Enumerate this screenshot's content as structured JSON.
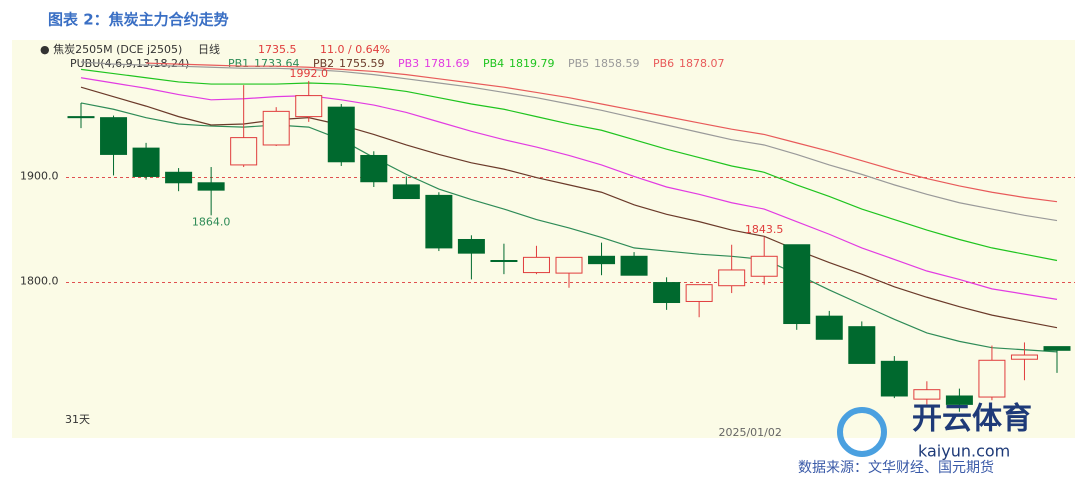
{
  "chart_data": {
    "type": "candlestick",
    "title": "图表 2：焦炭主力合约走势",
    "instrument": "● 焦炭2505M (DCE j2505)",
    "period": "日线",
    "last_price": "1735.5",
    "change": "11.0 / 0.64%",
    "indicator": "PUBU(4,6,9,13,18,24)",
    "period_label": "31天",
    "source": "数据来源：文华财经、国元期货",
    "watermark": [
      "开云体育",
      "kaiyun.com"
    ],
    "categories": [
      null,
      null,
      null,
      null,
      null,
      null,
      null,
      null,
      null,
      null,
      null,
      null,
      null,
      null,
      null,
      null,
      null,
      null,
      null,
      null,
      null,
      "2025/01/02",
      null,
      null,
      null,
      null,
      null,
      null,
      null,
      null,
      null
    ],
    "open": [
      1958,
      1957,
      1928,
      1905,
      1895,
      1912,
      1931,
      1958,
      1967,
      1921,
      1893,
      1883,
      1841,
      1821,
      1809.5,
      1809,
      1825,
      1825,
      1800,
      1782,
      1797,
      1806,
      1836,
      1768,
      1758,
      1725,
      1689,
      1692,
      1691,
      1727,
      1739
    ],
    "high": [
      1971,
      1959,
      1933,
      1909,
      1910,
      1988,
      1967,
      1992,
      1970,
      1925,
      1901,
      1886,
      1845,
      1837,
      1835,
      1824,
      1838,
      1829,
      1805,
      1798,
      1836,
      1843.5,
      1836,
      1773,
      1763,
      1730,
      1706,
      1699,
      1740,
      1743,
      1739
    ],
    "low": [
      1947,
      1902,
      1898,
      1887,
      1864,
      1910,
      1930,
      1953,
      1911,
      1891,
      1880,
      1830,
      1803,
      1808,
      1808,
      1795,
      1807,
      1807,
      1774,
      1767,
      1790,
      1798,
      1755,
      1746,
      1723,
      1690,
      1684,
      1677,
      1688,
      1707,
      1714
    ],
    "close": [
      1957,
      1922,
      1901,
      1895,
      1888,
      1938,
      1963,
      1978,
      1915,
      1896,
      1880,
      1833,
      1828,
      1821,
      1824,
      1824,
      1818,
      1807,
      1781,
      1798,
      1812,
      1825,
      1761,
      1746,
      1723,
      1692,
      1698,
      1684,
      1726,
      1731,
      1735.5
    ],
    "up_color": "#e03c3c",
    "down_color": "#00692e",
    "annotations": [
      "1992.0",
      "1864.0",
      "1843.5"
    ],
    "series": [
      {
        "name": "PB1",
        "legend_value": "1733.64",
        "color": "#2e8b57",
        "values": [
          1971,
          1965,
          1957,
          1951,
          1949,
          1948,
          1950,
          1948,
          1936,
          1919,
          1903,
          1889,
          1879,
          1870,
          1860,
          1852,
          1843,
          1833,
          1830,
          1827,
          1825,
          1822,
          1808,
          1793,
          1779,
          1765,
          1752,
          1744,
          1738,
          1736,
          1734
        ]
      },
      {
        "name": "PB2",
        "legend_value": "1755.59",
        "color": "#6b3a2a",
        "values": [
          1986,
          1977,
          1968,
          1958,
          1950,
          1951,
          1955,
          1957,
          1950,
          1941,
          1931,
          1922,
          1914,
          1908,
          1900,
          1893,
          1886,
          1874,
          1865,
          1858,
          1850,
          1844,
          1831,
          1819,
          1808,
          1796,
          1786,
          1777,
          1769,
          1763,
          1757
        ]
      },
      {
        "name": "PB3",
        "legend_value": "1781.69",
        "color": "#e23be2",
        "values": [
          1995,
          1990,
          1985,
          1979,
          1974,
          1975,
          1977,
          1978,
          1974,
          1969,
          1962,
          1953,
          1944,
          1936,
          1929,
          1921,
          1912,
          1901,
          1891,
          1884,
          1876,
          1870,
          1858,
          1846,
          1833,
          1822,
          1811,
          1803,
          1794,
          1789,
          1784
        ]
      },
      {
        "name": "PB4",
        "legend_value": "1819.79",
        "color": "#1fc41f",
        "values": [
          2003,
          1999,
          1995,
          1991,
          1989,
          1989,
          1989,
          1990,
          1989,
          1986,
          1982,
          1976,
          1970,
          1965,
          1958,
          1951,
          1945,
          1936,
          1927,
          1919,
          1911,
          1905,
          1893,
          1882,
          1870,
          1860,
          1850,
          1841,
          1833,
          1827,
          1821
        ]
      },
      {
        "name": "PB5",
        "legend_value": "1858.59",
        "color": "#9a9a9a",
        "values": [
          2010,
          2008,
          2007,
          2006,
          2005,
          2004,
          2004,
          2003,
          2001,
          1998,
          1994,
          1990,
          1986,
          1981,
          1976,
          1970,
          1964,
          1957,
          1950,
          1943,
          1936,
          1931,
          1922,
          1912,
          1903,
          1893,
          1884,
          1876,
          1870,
          1864,
          1859
        ]
      },
      {
        "name": "PB6",
        "legend_value": "1878.07",
        "color": "#e85a5a",
        "values": [
          null,
          null,
          2009,
          2008,
          2007,
          2006,
          2006,
          2005,
          2003,
          2001,
          1998,
          1994,
          1990,
          1986,
          1981,
          1976,
          1970,
          1964,
          1958,
          1952,
          1946,
          1941,
          1933,
          1925,
          1916,
          1907,
          1899,
          1892,
          1886,
          1881,
          1877
        ]
      }
    ],
    "ylim": [
      1652,
      2010
    ],
    "yticks": [
      {
        "value": 1800,
        "label": "1800.0"
      },
      {
        "value": 1900,
        "label": "1900.0"
      }
    ],
    "grid": true
  }
}
